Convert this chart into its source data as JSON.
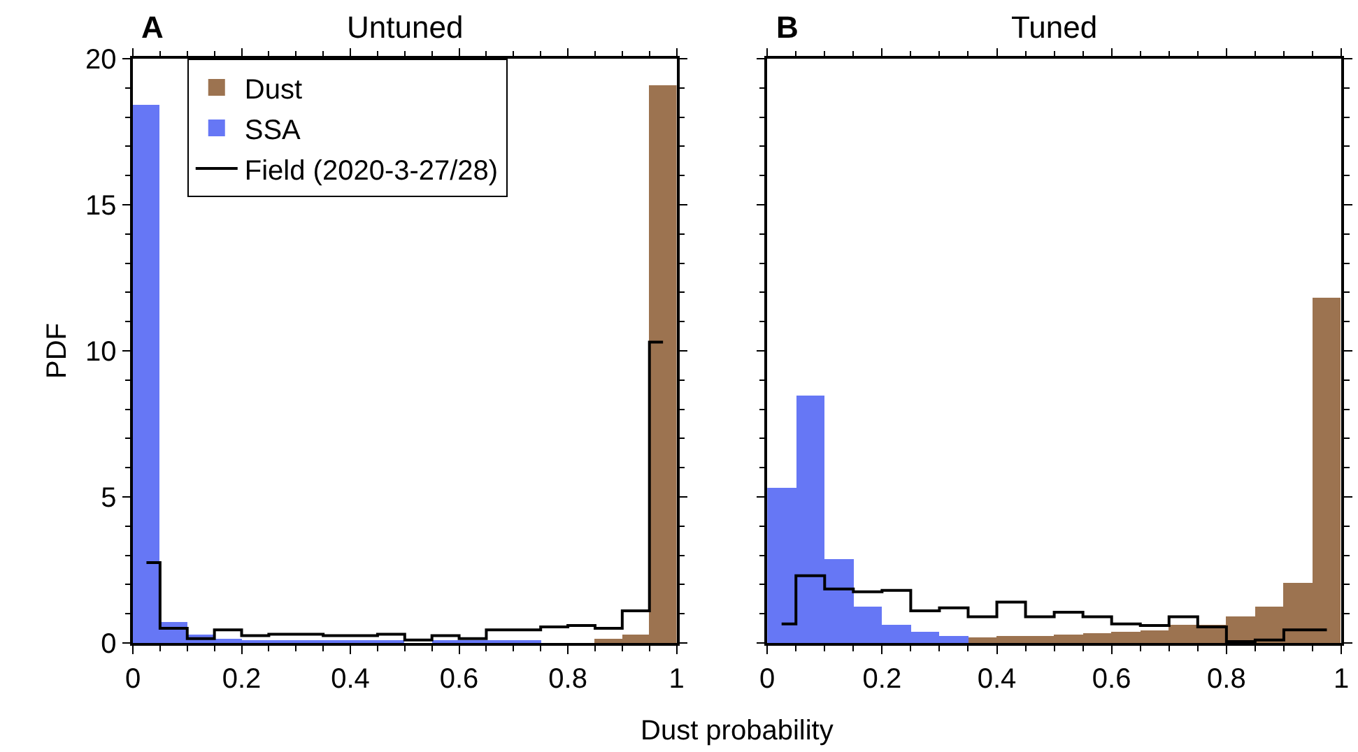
{
  "chart_data": [
    {
      "type": "histogram",
      "title": "Untuned",
      "ylabel": "PDF",
      "xlabel": "Dust probability",
      "annotations": [
        "A"
      ],
      "bins": [
        0,
        0.05,
        0.1,
        0.15,
        0.2,
        0.25,
        0.3,
        0.35,
        0.4,
        0.45,
        0.5,
        0.55,
        0.6,
        0.65,
        0.7,
        0.75,
        0.8,
        0.85,
        0.9,
        0.95,
        1
      ],
      "series": [
        {
          "name": "Dust",
          "color": "#9c7350",
          "values": [
            null,
            null,
            null,
            null,
            null,
            null,
            null,
            null,
            null,
            null,
            null,
            null,
            null,
            null,
            null,
            null,
            null,
            0.15,
            0.3,
            19.1
          ]
        },
        {
          "name": "SSA",
          "color": "#6677f5",
          "values": [
            18.4,
            0.7,
            0.3,
            0.15,
            0.1,
            0.05,
            0.05,
            0.05,
            0.05,
            0.05,
            null,
            0.05,
            0.05,
            0.05,
            0.05,
            null,
            null,
            null,
            null,
            null
          ]
        },
        {
          "name": "Field (2020-3-27/28)",
          "color": "#000000",
          "type": "step",
          "x": [
            0.025,
            0.075,
            0.125,
            0.175,
            0.225,
            0.275,
            0.325,
            0.375,
            0.425,
            0.475,
            0.525,
            0.575,
            0.625,
            0.675,
            0.725,
            0.775,
            0.825,
            0.875,
            0.925,
            0.975
          ],
          "values": [
            2.75,
            0.5,
            0.15,
            0.45,
            0.25,
            0.3,
            0.3,
            0.25,
            0.25,
            0.3,
            0.1,
            0.25,
            0.15,
            0.45,
            0.45,
            0.55,
            0.6,
            0.5,
            1.1,
            10.3
          ]
        }
      ],
      "xlim": [
        0,
        1
      ],
      "xticks": [
        0,
        0.2,
        0.4,
        0.6,
        0.8,
        1
      ],
      "ylim": [
        0,
        20
      ],
      "yticks": [
        0,
        5,
        10,
        15,
        20
      ],
      "legend": "top left"
    },
    {
      "type": "histogram",
      "title": "Tuned",
      "annotations": [
        "B"
      ],
      "bins": [
        0,
        0.05,
        0.1,
        0.15,
        0.2,
        0.25,
        0.3,
        0.35,
        0.4,
        0.45,
        0.5,
        0.55,
        0.6,
        0.65,
        0.7,
        0.75,
        0.8,
        0.85,
        0.9,
        0.95,
        1
      ],
      "series": [
        {
          "color": "#9c7350",
          "values": [
            null,
            null,
            null,
            null,
            null,
            null,
            null,
            0.2,
            0.25,
            0.25,
            0.3,
            0.35,
            0.4,
            0.45,
            0.6,
            0.6,
            0.9,
            1.25,
            2.05,
            11.8
          ]
        },
        {
          "color": "#6677f5",
          "values": [
            5.3,
            8.45,
            2.85,
            1.25,
            0.6,
            0.4,
            0.25,
            null,
            null,
            null,
            null,
            null,
            null,
            null,
            null,
            null,
            null,
            null,
            null,
            null
          ]
        },
        {
          "color": "#000000",
          "type": "step",
          "x": [
            0.025,
            0.075,
            0.125,
            0.175,
            0.225,
            0.275,
            0.325,
            0.375,
            0.425,
            0.475,
            0.525,
            0.575,
            0.625,
            0.675,
            0.725,
            0.775,
            0.825,
            0.875,
            0.925,
            0.975
          ],
          "values": [
            0.65,
            2.3,
            1.85,
            1.75,
            1.8,
            1.1,
            1.2,
            0.9,
            1.4,
            0.9,
            1.05,
            0.9,
            0.65,
            0.6,
            0.9,
            0.55,
            0.05,
            0.1,
            0.45,
            0.45
          ]
        }
      ],
      "xlim": [
        0,
        1
      ],
      "xticks": [
        0,
        0.2,
        0.4,
        0.6,
        0.8,
        1
      ],
      "ylim": [
        0,
        20
      ],
      "yticks": [
        0,
        5,
        10,
        15,
        20
      ],
      "tick_labels": "x",
      "legend": false
    }
  ]
}
